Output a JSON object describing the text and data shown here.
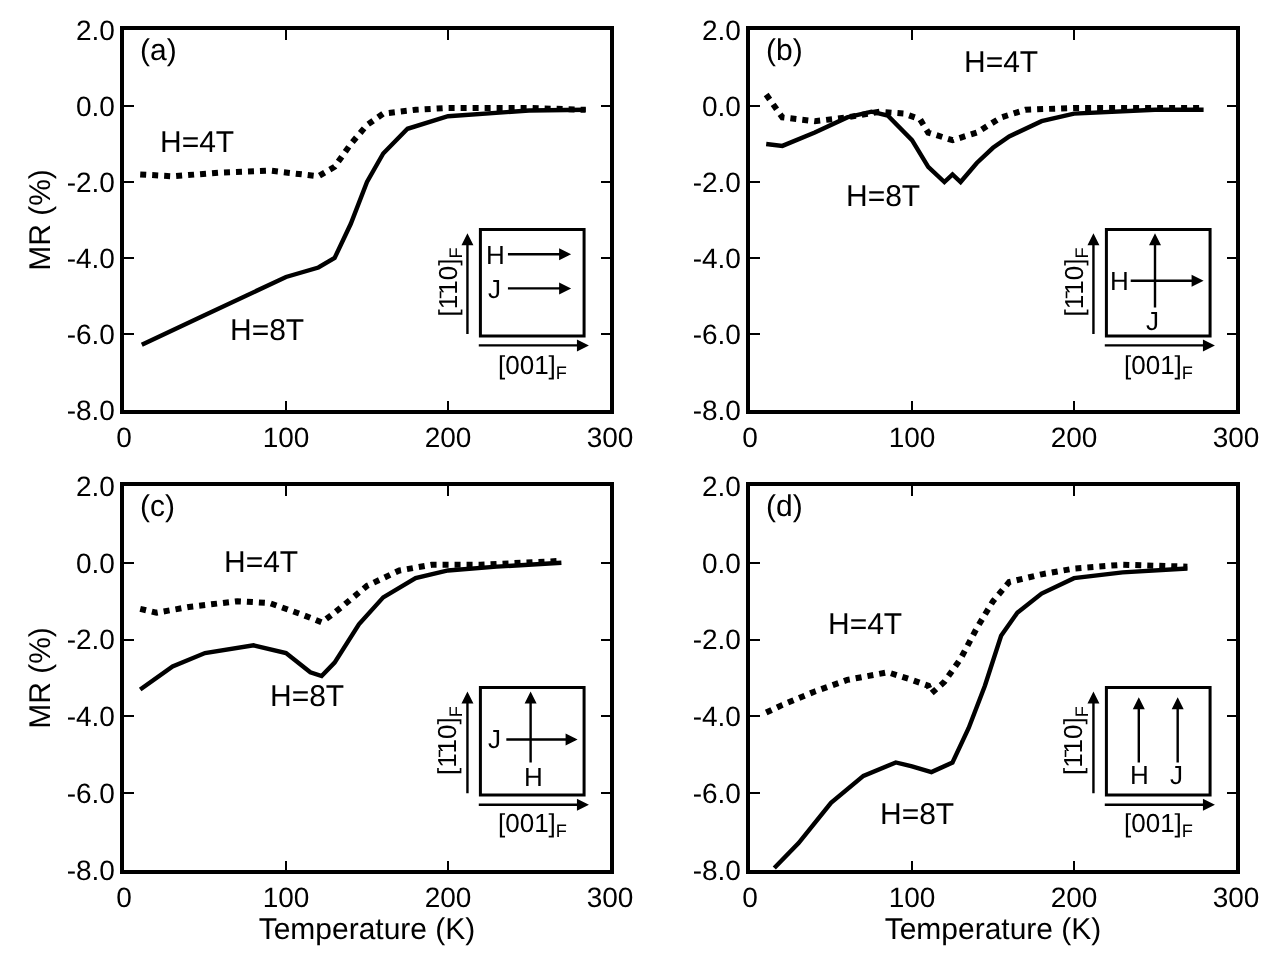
{
  "chart_data": [
    {
      "type": "line",
      "ylabel": "MR (%)",
      "xlim": [
        0,
        300
      ],
      "xticks": [
        0,
        100,
        200,
        300
      ],
      "ylim": [
        -8,
        2
      ],
      "yticks": [
        {
          "value": -8,
          "label": "-8.0"
        },
        {
          "value": -6,
          "label": "-6.0"
        },
        {
          "value": -4,
          "label": "-4.0"
        },
        {
          "value": -2,
          "label": "-2.0"
        },
        {
          "value": 0,
          "label": "0.0"
        },
        {
          "value": 2,
          "label": "2.0"
        }
      ],
      "series": [
        {
          "color": "#000000",
          "line_style": "dotted",
          "x": [
            10,
            30,
            60,
            90,
            110,
            120,
            130,
            140,
            150,
            160,
            180,
            200,
            250,
            285
          ],
          "values": [
            -1.8,
            -1.85,
            -1.75,
            -1.7,
            -1.8,
            -1.85,
            -1.6,
            -1.0,
            -0.5,
            -0.2,
            -0.1,
            -0.05,
            -0.05,
            -0.1
          ]
        },
        {
          "color": "#000000",
          "line_style": "solid",
          "x": [
            11,
            50,
            100,
            120,
            130,
            140,
            150,
            160,
            175,
            200,
            250,
            285
          ],
          "values": [
            -6.28,
            -5.5,
            -4.5,
            -4.25,
            -4.0,
            -3.1,
            -2.0,
            -1.25,
            -0.6,
            -0.27,
            -0.12,
            -0.1
          ]
        }
      ],
      "annotations": [
        "(a)",
        "[1̄10]$_{F}$",
        "[001]$_{F}$",
        "H",
        "J",
        "H=4T",
        "H=8T"
      ]
    },
    {
      "type": "line",
      "xlim": [
        0,
        300
      ],
      "xticks": [
        0,
        100,
        200,
        300
      ],
      "ylim": [
        -8,
        2
      ],
      "yticks": [
        {
          "value": -8,
          "label": "-8.0"
        },
        {
          "value": -6,
          "label": "-6.0"
        },
        {
          "value": -4,
          "label": "-4.0"
        },
        {
          "value": -2,
          "label": "-2.0"
        },
        {
          "value": 0,
          "label": "0.0"
        },
        {
          "value": 2,
          "label": "2.0"
        }
      ],
      "series": [
        {
          "color": "#000000",
          "line_style": "dotted",
          "x": [
            10,
            20,
            40,
            60,
            80,
            95,
            105,
            110,
            125,
            140,
            155,
            170,
            200,
            280
          ],
          "values": [
            0.3,
            -0.3,
            -0.4,
            -0.3,
            -0.15,
            -0.2,
            -0.35,
            -0.7,
            -0.9,
            -0.7,
            -0.3,
            -0.1,
            -0.05,
            -0.05
          ]
        },
        {
          "color": "#000000",
          "line_style": "solid",
          "x": [
            10,
            20,
            40,
            60,
            75,
            85,
            100,
            110,
            120,
            125,
            130,
            140,
            150,
            160,
            180,
            200,
            250,
            280
          ],
          "values": [
            -1.0,
            -1.05,
            -0.7,
            -0.3,
            -0.15,
            -0.25,
            -0.9,
            -1.6,
            -2.0,
            -1.8,
            -2.0,
            -1.5,
            -1.1,
            -0.8,
            -0.4,
            -0.2,
            -0.1,
            -0.1
          ]
        }
      ],
      "annotations": [
        "(b)",
        "[1̄10]$_{F}$",
        "[001]$_{F}$",
        "H",
        "J",
        "H=4T",
        "H=8T"
      ]
    },
    {
      "type": "line",
      "xlabel": "Temperature (K)",
      "ylabel": "MR (%)",
      "xlim": [
        0,
        300
      ],
      "xticks": [
        0,
        100,
        200,
        300
      ],
      "ylim": [
        -8,
        2
      ],
      "yticks": [
        {
          "value": -8,
          "label": "-8.0"
        },
        {
          "value": -6,
          "label": "-6.0"
        },
        {
          "value": -4,
          "label": "-4.0"
        },
        {
          "value": -2,
          "label": "-2.0"
        },
        {
          "value": 0,
          "label": "0.0"
        },
        {
          "value": 2,
          "label": "2.0"
        }
      ],
      "series": [
        {
          "color": "#000000",
          "line_style": "dotted",
          "x": [
            10,
            20,
            40,
            70,
            90,
            110,
            122,
            130,
            150,
            170,
            190,
            220,
            270
          ],
          "values": [
            -1.2,
            -1.3,
            -1.15,
            -1.0,
            -1.05,
            -1.35,
            -1.55,
            -1.3,
            -0.6,
            -0.2,
            -0.05,
            -0.05,
            0.05
          ]
        },
        {
          "color": "#000000",
          "line_style": "solid",
          "x": [
            10,
            30,
            50,
            80,
            100,
            115,
            122,
            130,
            145,
            160,
            180,
            200,
            230,
            270
          ],
          "values": [
            -3.3,
            -2.7,
            -2.35,
            -2.15,
            -2.35,
            -2.85,
            -2.95,
            -2.6,
            -1.6,
            -0.9,
            -0.4,
            -0.2,
            -0.1,
            0.0
          ]
        }
      ],
      "annotations": [
        "(c)",
        "[1̄10]$_{F}$",
        "[001]$_{F}$",
        "J",
        "H",
        "H=4T",
        "H=8T"
      ]
    },
    {
      "type": "line",
      "xlabel": "Temperature (K)",
      "xlim": [
        0,
        300
      ],
      "xticks": [
        0,
        100,
        200,
        300
      ],
      "ylim": [
        -8,
        2
      ],
      "yticks": [
        {
          "value": -8,
          "label": "-8.0"
        },
        {
          "value": -6,
          "label": "-6.0"
        },
        {
          "value": -4,
          "label": "-4.0"
        },
        {
          "value": -2,
          "label": "-2.0"
        },
        {
          "value": 0,
          "label": "0.0"
        },
        {
          "value": 2,
          "label": "2.0"
        }
      ],
      "series": [
        {
          "color": "#000000",
          "line_style": "dotted",
          "x": [
            10,
            20,
            40,
            60,
            85,
            100,
            110,
            112,
            120,
            130,
            140,
            150,
            160,
            180,
            200,
            230,
            270
          ],
          "values": [
            -3.9,
            -3.7,
            -3.35,
            -3.05,
            -2.85,
            -3.05,
            -3.2,
            -3.4,
            -3.1,
            -2.5,
            -1.7,
            -1.0,
            -0.5,
            -0.3,
            -0.15,
            -0.05,
            -0.1
          ]
        },
        {
          "color": "#000000",
          "line_style": "solid",
          "x": [
            15,
            30,
            50,
            70,
            90,
            100,
            112,
            125,
            135,
            145,
            155,
            165,
            180,
            200,
            230,
            270
          ],
          "values": [
            -7.95,
            -7.3,
            -6.25,
            -5.55,
            -5.2,
            -5.3,
            -5.45,
            -5.2,
            -4.3,
            -3.2,
            -1.9,
            -1.3,
            -0.8,
            -0.4,
            -0.25,
            -0.15
          ]
        }
      ],
      "annotations": [
        "(d)",
        "[1̄10]$_{F}$",
        "[001]$_{F}$",
        "H",
        "J",
        "H=4T",
        "H=8T"
      ]
    }
  ]
}
